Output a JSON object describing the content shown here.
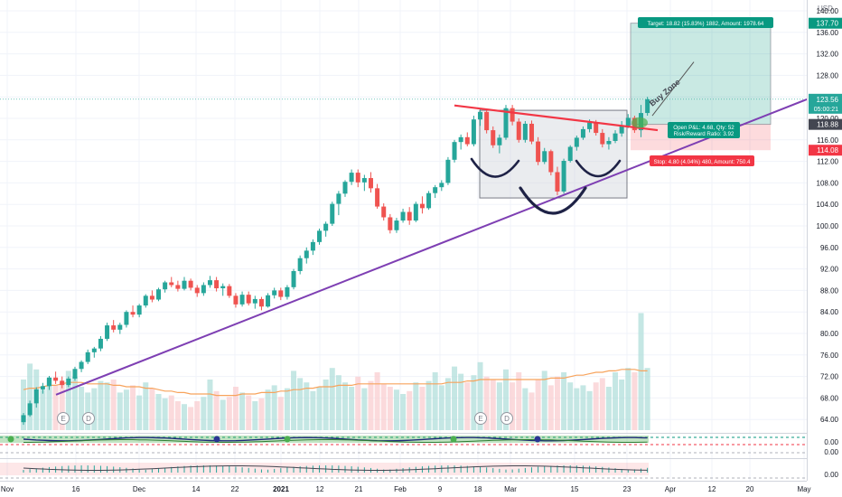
{
  "chart_data": {
    "type": "candlestick",
    "currency": "USD",
    "ylim": [
      62,
      140
    ],
    "y_ticks": [
      "140.00",
      "136.00",
      "132.00",
      "128.00",
      "124.00",
      "120.00",
      "116.00",
      "112.00",
      "108.00",
      "104.00",
      "100.00",
      "96.00",
      "92.00",
      "88.00",
      "84.00",
      "80.00",
      "76.00",
      "72.00",
      "68.00",
      "64.00"
    ],
    "x_ticks": [
      "Nov",
      "16",
      "Dec",
      "14",
      "22",
      "2021",
      "12",
      "21",
      "Feb",
      "9",
      "18",
      "Mar",
      "15",
      "23",
      "Apr",
      "12",
      "20",
      "May"
    ],
    "price_badges": {
      "target_price": "137.70",
      "last_price": "123.56",
      "countdown": "05:00:21",
      "entry_price": "118.88",
      "stop_price": "114.08"
    },
    "trade_labels": {
      "target": "Target: 18.82 (15.83%) 1882, Amount: 1978.64",
      "open_pnl": "Open P&L: 4.68, Qty: 52",
      "risk_reward": "Risk/Reward Ratio: 3.92",
      "stop": "Stop: 4.80 (4.04%) 480, Amount: 750.4"
    },
    "annotation": "Buy Zone",
    "event_markers": [
      "E",
      "D",
      "E",
      "D"
    ],
    "osc1_label": "0.00",
    "osc1_label2": "0.00",
    "osc2_label": "0.00",
    "colors": {
      "up": "#26a69a",
      "down": "#ef5350",
      "trend": "#7e3fb3",
      "resistance": "#f23645",
      "target": "#089981",
      "stop": "#f23645"
    },
    "candles": [
      [
        63.5,
        65.2,
        63.0,
        64.8
      ],
      [
        64.8,
        67.5,
        64.5,
        67.0
      ],
      [
        67.0,
        70.0,
        66.2,
        69.6
      ],
      [
        69.6,
        70.8,
        68.8,
        70.2
      ],
      [
        70.2,
        72.1,
        69.5,
        71.8
      ],
      [
        71.8,
        72.9,
        70.6,
        71.2
      ],
      [
        71.2,
        72.0,
        69.8,
        70.4
      ],
      [
        70.4,
        72.0,
        70.0,
        71.6
      ],
      [
        71.6,
        73.8,
        71.2,
        73.4
      ],
      [
        73.4,
        75.0,
        72.8,
        74.7
      ],
      [
        74.7,
        77.0,
        74.3,
        76.5
      ],
      [
        76.5,
        77.5,
        75.5,
        77.2
      ],
      [
        77.2,
        79.5,
        76.7,
        79.0
      ],
      [
        79.0,
        82.0,
        78.6,
        81.5
      ],
      [
        81.5,
        82.5,
        80.2,
        80.7
      ],
      [
        80.7,
        82.0,
        79.9,
        81.6
      ],
      [
        81.6,
        84.3,
        81.1,
        84.0
      ],
      [
        84.0,
        85.2,
        83.0,
        83.5
      ],
      [
        83.5,
        85.5,
        83.0,
        85.2
      ],
      [
        85.2,
        87.3,
        84.8,
        87.0
      ],
      [
        87.0,
        88.0,
        85.8,
        86.3
      ],
      [
        86.3,
        88.5,
        86.0,
        88.2
      ],
      [
        88.2,
        89.8,
        87.6,
        89.5
      ],
      [
        89.5,
        90.5,
        88.6,
        89.0
      ],
      [
        89.0,
        89.8,
        87.8,
        88.3
      ],
      [
        88.3,
        90.5,
        88.0,
        89.8
      ],
      [
        89.8,
        90.2,
        88.0,
        88.5
      ],
      [
        88.5,
        89.0,
        86.8,
        87.5
      ],
      [
        87.5,
        89.5,
        87.0,
        89.0
      ],
      [
        89.0,
        90.7,
        88.5,
        89.9
      ],
      [
        89.9,
        90.5,
        87.8,
        88.4
      ],
      [
        88.4,
        89.3,
        87.0,
        88.8
      ],
      [
        88.8,
        89.2,
        86.6,
        87.0
      ],
      [
        87.0,
        87.5,
        84.8,
        85.4
      ],
      [
        85.4,
        87.8,
        85.0,
        87.2
      ],
      [
        87.2,
        87.8,
        85.2,
        85.6
      ],
      [
        85.6,
        87.0,
        84.6,
        86.4
      ],
      [
        86.4,
        86.8,
        84.3,
        85.0
      ],
      [
        85.0,
        87.5,
        84.8,
        87.1
      ],
      [
        87.1,
        88.5,
        86.5,
        88.0
      ],
      [
        88.0,
        88.5,
        86.2,
        86.8
      ],
      [
        86.8,
        89.0,
        86.3,
        88.6
      ],
      [
        88.6,
        92.0,
        88.2,
        91.6
      ],
      [
        91.6,
        94.5,
        91.0,
        94.0
      ],
      [
        94.0,
        96.0,
        93.0,
        95.4
      ],
      [
        95.4,
        97.5,
        94.6,
        97.0
      ],
      [
        97.0,
        99.5,
        96.5,
        99.1
      ],
      [
        99.1,
        100.8,
        98.0,
        100.4
      ],
      [
        100.4,
        104.5,
        100.0,
        104.1
      ],
      [
        104.1,
        106.5,
        102.0,
        106.0
      ],
      [
        106.0,
        108.5,
        105.4,
        108.2
      ],
      [
        108.2,
        110.5,
        107.6,
        109.9
      ],
      [
        109.9,
        110.5,
        107.2,
        108.1
      ],
      [
        108.1,
        109.5,
        106.5,
        108.9
      ],
      [
        108.9,
        110.0,
        106.2,
        107.0
      ],
      [
        107.0,
        107.8,
        103.2,
        103.6
      ],
      [
        103.6,
        104.2,
        101.0,
        101.6
      ],
      [
        101.6,
        102.2,
        98.6,
        99.2
      ],
      [
        99.2,
        101.5,
        98.7,
        101.0
      ],
      [
        101.0,
        103.2,
        100.6,
        102.6
      ],
      [
        102.6,
        103.5,
        100.2,
        101.0
      ],
      [
        101.0,
        104.5,
        100.7,
        104.1
      ],
      [
        104.1,
        105.5,
        102.3,
        103.3
      ],
      [
        103.3,
        106.5,
        103.0,
        106.1
      ],
      [
        106.1,
        107.6,
        105.2,
        107.2
      ],
      [
        107.2,
        108.5,
        106.5,
        108.0
      ],
      [
        108.0,
        112.8,
        107.6,
        112.3
      ],
      [
        112.3,
        116.0,
        111.8,
        115.6
      ],
      [
        115.6,
        117.0,
        114.2,
        116.5
      ],
      [
        116.5,
        117.4,
        114.8,
        115.2
      ],
      [
        115.2,
        120.5,
        114.8,
        119.8
      ],
      [
        119.8,
        121.8,
        118.6,
        121.2
      ],
      [
        121.2,
        121.6,
        117.2,
        117.8
      ],
      [
        117.8,
        118.5,
        114.5,
        115.0
      ],
      [
        115.0,
        117.0,
        113.5,
        116.4
      ],
      [
        116.4,
        122.5,
        116.0,
        121.9
      ],
      [
        121.9,
        122.5,
        118.7,
        119.4
      ],
      [
        119.4,
        120.0,
        115.5,
        116.0
      ],
      [
        116.0,
        119.5,
        115.5,
        119.0
      ],
      [
        119.0,
        119.6,
        115.2,
        115.7
      ],
      [
        115.7,
        116.5,
        111.3,
        111.9
      ],
      [
        111.9,
        114.5,
        111.5,
        113.9
      ],
      [
        113.9,
        114.2,
        109.4,
        110.0
      ],
      [
        110.0,
        111.0,
        105.7,
        106.4
      ],
      [
        106.4,
        112.5,
        106.0,
        112.1
      ],
      [
        112.1,
        115.0,
        111.8,
        114.7
      ],
      [
        114.7,
        116.8,
        114.0,
        116.4
      ],
      [
        116.4,
        118.5,
        116.0,
        118.0
      ],
      [
        118.0,
        119.8,
        117.4,
        119.2
      ],
      [
        119.2,
        119.7,
        116.8,
        117.3
      ],
      [
        117.3,
        118.0,
        114.6,
        115.2
      ],
      [
        115.2,
        116.5,
        114.2,
        115.8
      ],
      [
        115.8,
        117.8,
        115.4,
        117.2
      ],
      [
        117.2,
        119.5,
        116.6,
        118.6
      ],
      [
        118.6,
        120.8,
        118.2,
        120.1
      ],
      [
        120.1,
        120.5,
        117.3,
        117.8
      ],
      [
        117.8,
        122.5,
        116.5,
        121.0
      ],
      [
        121.0,
        124.0,
        120.5,
        123.56
      ]
    ],
    "volume": [
      0.35,
      0.46,
      0.42,
      0.28,
      0.36,
      0.31,
      0.33,
      0.41,
      0.37,
      0.3,
      0.26,
      0.29,
      0.34,
      0.33,
      0.35,
      0.26,
      0.28,
      0.31,
      0.24,
      0.33,
      0.29,
      0.25,
      0.22,
      0.24,
      0.2,
      0.18,
      0.16,
      0.2,
      0.23,
      0.35,
      0.27,
      0.21,
      0.23,
      0.3,
      0.26,
      0.24,
      0.2,
      0.22,
      0.28,
      0.31,
      0.23,
      0.29,
      0.41,
      0.36,
      0.33,
      0.27,
      0.3,
      0.35,
      0.43,
      0.38,
      0.33,
      0.3,
      0.37,
      0.29,
      0.34,
      0.4,
      0.32,
      0.3,
      0.28,
      0.25,
      0.27,
      0.33,
      0.3,
      0.34,
      0.4,
      0.31,
      0.36,
      0.44,
      0.39,
      0.33,
      0.38,
      0.47,
      0.37,
      0.35,
      0.33,
      0.42,
      0.33,
      0.4,
      0.29,
      0.26,
      0.35,
      0.41,
      0.31,
      0.37,
      0.4,
      0.33,
      0.29,
      0.31,
      0.27,
      0.33,
      0.36,
      0.3,
      0.4,
      0.35,
      0.43,
      0.4,
      0.81,
      0.43
    ],
    "volume_ma": [
      0.28,
      0.29,
      0.29,
      0.3,
      0.31,
      0.31,
      0.32,
      0.33,
      0.33,
      0.33,
      0.32,
      0.32,
      0.32,
      0.32,
      0.31,
      0.31,
      0.3,
      0.3,
      0.3,
      0.29,
      0.29,
      0.28,
      0.27,
      0.27,
      0.26,
      0.26,
      0.25,
      0.25,
      0.25,
      0.25,
      0.24,
      0.24,
      0.24,
      0.24,
      0.25,
      0.25,
      0.25,
      0.26,
      0.26,
      0.26,
      0.27,
      0.27,
      0.28,
      0.28,
      0.29,
      0.29,
      0.3,
      0.3,
      0.3,
      0.31,
      0.31,
      0.31,
      0.32,
      0.32,
      0.32,
      0.32,
      0.32,
      0.32,
      0.32,
      0.32,
      0.32,
      0.32,
      0.32,
      0.32,
      0.32,
      0.32,
      0.33,
      0.33,
      0.33,
      0.34,
      0.34,
      0.35,
      0.35,
      0.35,
      0.35,
      0.35,
      0.35,
      0.35,
      0.35,
      0.35,
      0.35,
      0.35,
      0.36,
      0.36,
      0.36,
      0.37,
      0.38,
      0.38,
      0.39,
      0.4,
      0.4,
      0.41,
      0.41,
      0.42,
      0.42,
      0.42,
      0.41,
      0.41
    ]
  }
}
